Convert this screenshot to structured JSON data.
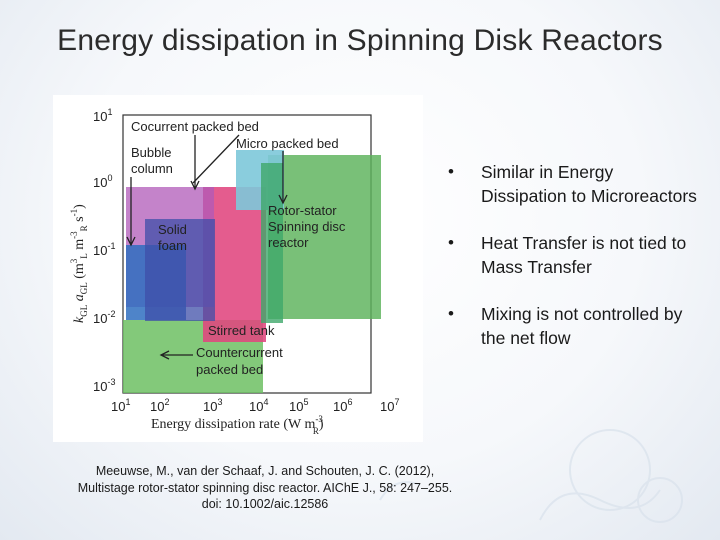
{
  "title": "Energy dissipation in Spinning Disk Reactors",
  "figure": {
    "ylabel": "k_GL a_GL (m_L^3 m_R^-3 s^-1)",
    "xlabel": "Energy dissipation rate (W m_R^-3)",
    "y_ticks": [
      "10-3",
      "10-2",
      "10-1",
      "10^0",
      "10^1"
    ],
    "x_ticks": [
      "10^1",
      "10^2",
      "10^3",
      "10^4",
      "10^5",
      "10^6",
      "10^7"
    ],
    "regions": [
      {
        "label": "Cocurrent packed bed",
        "color": "#7b3a9a"
      },
      {
        "label": "Bubble column",
        "color": "#9a4ea6"
      },
      {
        "label": "Micro packed bed",
        "color": "#7dc8d9"
      },
      {
        "label": "Solid foam",
        "color": "#3f4fa8"
      },
      {
        "label": "Rotor-stator Spinning disc reactor",
        "color": "#5cb25a"
      },
      {
        "label": "Stirred tank",
        "color": "#e0457e"
      },
      {
        "label": "Countercurrent packed bed",
        "color": "#6dbf63"
      }
    ]
  },
  "bullets": [
    "Similar in Energy Dissipation to Microreactors",
    "Heat Transfer is not tied to Mass Transfer",
    "Mixing is not controlled by the net flow"
  ],
  "bullet_symbol": "•",
  "citation": [
    "Meeuwse, M., van der Schaaf, J. and Schouten, J. C. (2012),",
    "Multistage rotor-stator spinning disc reactor. AIChE J., 58: 247–255.",
    "doi: 10.1002/aic.12586"
  ]
}
